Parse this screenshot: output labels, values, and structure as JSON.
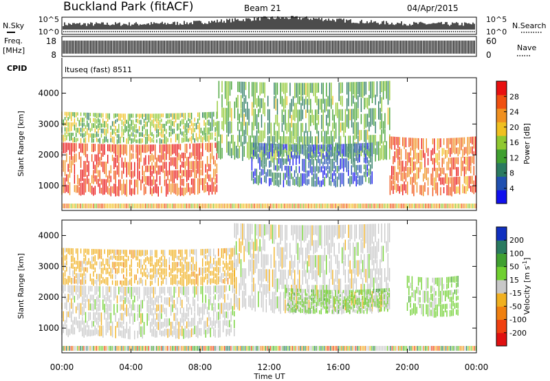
{
  "header": {
    "station": "Buckland Park (fitACF)",
    "beam": "Beam 21",
    "date": "04/Apr/2015"
  },
  "strip": {
    "nsky_label": "N.Sky",
    "nsearch_label": "N.Search",
    "noise_ticks": [
      "10^5",
      "10^0"
    ],
    "noise_ticks_right": [
      "10^5",
      "10^0"
    ],
    "freq_label": "Freq.",
    "freq_unit": "[MHz]",
    "freq_ticks": [
      "18",
      "8"
    ],
    "nave_label": "Nave",
    "nave_ticks": [
      "60",
      "0"
    ],
    "cpid_label": "CPID",
    "cpid_value": "ltuseq (fast) 8511"
  },
  "panels": {
    "ylabel": "Slant Range [km]",
    "xlabel": "Time UT",
    "y_ticks": [
      "1000",
      "2000",
      "3000",
      "4000"
    ],
    "x_ticks": [
      "00:00",
      "04:00",
      "08:00",
      "12:00",
      "16:00",
      "20:00",
      "00:00"
    ],
    "power_cbar_title": "Power [dB]",
    "power_cbar_ticks": [
      "4",
      "8",
      "12",
      "16",
      "20",
      "24",
      "28"
    ],
    "velocity_cbar_title": "Velocity [m s",
    "velocity_cbar_title_sup": "-1",
    "velocity_cbar_title_end": "]",
    "velocity_cbar_ticks": [
      "-200",
      "-100",
      "-50",
      "-15",
      "15",
      "50",
      "100",
      "200"
    ]
  },
  "colors": {
    "power_scale": [
      "#1010ee",
      "#2050b0",
      "#2a7a60",
      "#40a030",
      "#90c830",
      "#f0c020",
      "#f09020",
      "#f05010",
      "#e81010"
    ],
    "velocity_scale": [
      "#e01010",
      "#f04010",
      "#f08010",
      "#f0b020",
      "#c8c8c8",
      "#70d030",
      "#40a030",
      "#2a7a60",
      "#1030c0"
    ]
  },
  "chart_data": [
    {
      "type": "heatmap",
      "title": "Power [dB]",
      "xlabel": "Time UT",
      "ylabel": "Slant Range [km]",
      "xlim": [
        0,
        24
      ],
      "ylim": [
        200,
        4500
      ],
      "clim": [
        0,
        30
      ],
      "regions": [
        {
          "t0": 0,
          "t1": 9,
          "r0": 700,
          "r1": 2400,
          "power": 26
        },
        {
          "t0": 0,
          "t1": 9,
          "r0": 2400,
          "r1": 3400,
          "power": 14
        },
        {
          "t0": 9,
          "t1": 19,
          "r0": 1800,
          "r1": 4400,
          "power": 12
        },
        {
          "t0": 11,
          "t1": 18,
          "r0": 1000,
          "r1": 2400,
          "power": 6
        },
        {
          "t0": 19,
          "t1": 24,
          "r0": 700,
          "r1": 2600,
          "power": 24
        }
      ]
    },
    {
      "type": "heatmap",
      "title": "Velocity [m s-1]",
      "xlabel": "Time UT",
      "ylabel": "Slant Range [km]",
      "xlim": [
        0,
        24
      ],
      "ylim": [
        200,
        4500
      ],
      "clim": [
        -200,
        200
      ],
      "regions": [
        {
          "t0": 0,
          "t1": 10,
          "r0": 700,
          "r1": 2400,
          "velocity": 0
        },
        {
          "t0": 0,
          "t1": 10,
          "r0": 2400,
          "r1": 3600,
          "velocity": -40
        },
        {
          "t0": 10,
          "t1": 19,
          "r0": 1500,
          "r1": 4400,
          "velocity": 0
        },
        {
          "t0": 13,
          "t1": 19,
          "r0": 1500,
          "r1": 2300,
          "velocity": 40
        },
        {
          "t0": 20,
          "t1": 23,
          "r0": 1400,
          "r1": 2700,
          "velocity": 40
        }
      ]
    }
  ]
}
